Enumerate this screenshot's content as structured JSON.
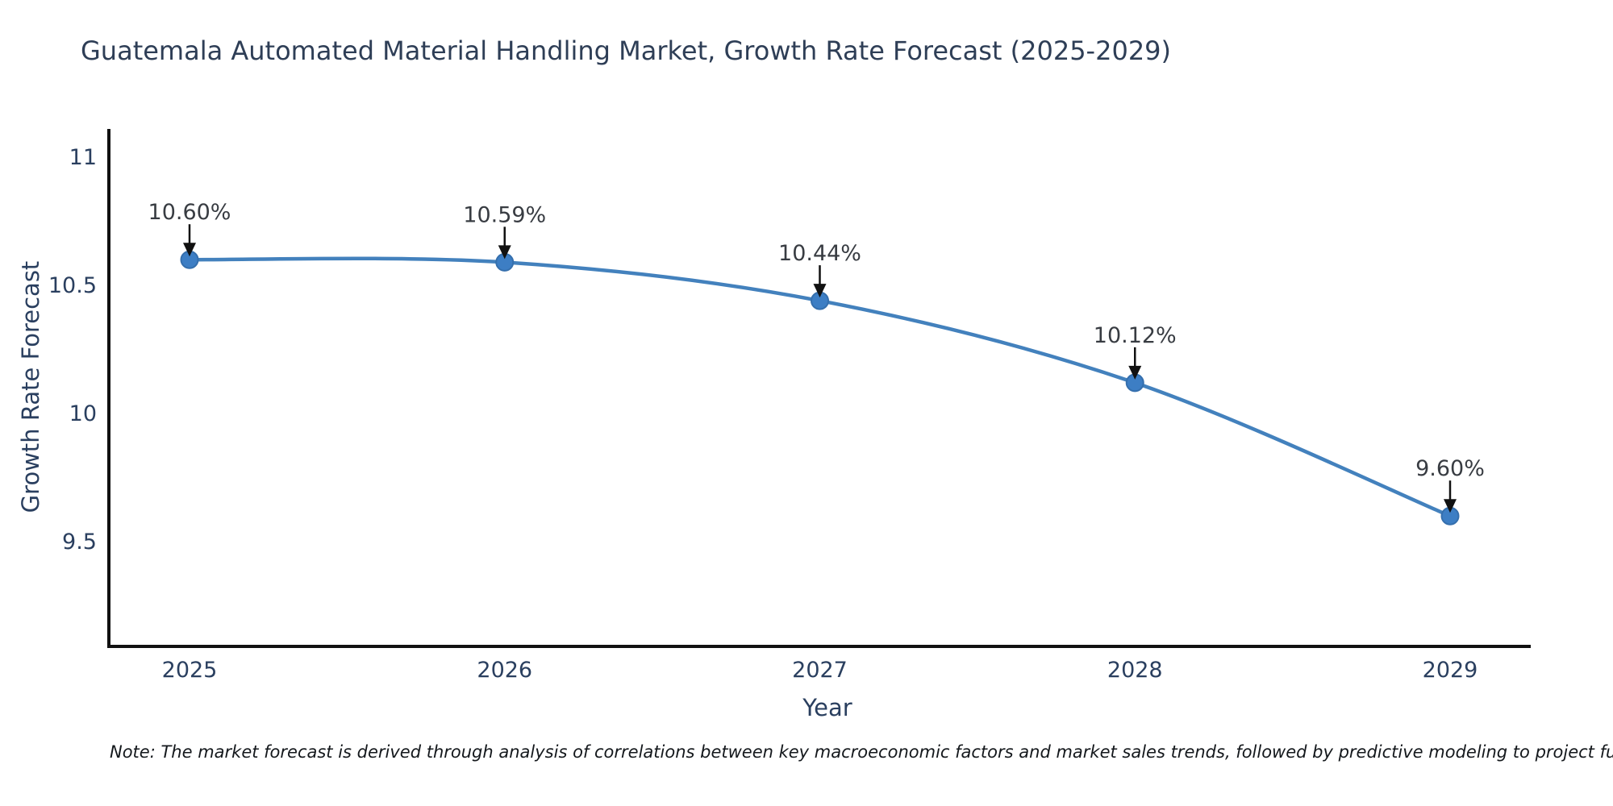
{
  "page": {
    "background_color": "#ffffff"
  },
  "chart_data": {
    "type": "line",
    "title": "Guatemala Automated Material Handling Market, Growth Rate Forecast (2025-2029)",
    "xlabel": "Year",
    "ylabel": "Growth Rate Forecast",
    "x": [
      2025,
      2026,
      2027,
      2028,
      2029
    ],
    "series": [
      {
        "name": "Growth Rate Forecast",
        "values": [
          10.6,
          10.59,
          10.44,
          10.12,
          9.6
        ]
      }
    ],
    "point_labels": [
      "10.60%",
      "10.59%",
      "10.44%",
      "10.12%",
      "9.60%"
    ],
    "xticks": [
      2025,
      2026,
      2027,
      2028,
      2029
    ],
    "yticks": [
      9.5,
      10,
      10.5,
      11
    ],
    "ylim": [
      9.1,
      11.1
    ],
    "xlim": [
      2024.74,
      2029.27
    ],
    "grid": false,
    "legend_position": "none",
    "line_color": "#4381bd",
    "marker_color": "#3d7ec4",
    "marker_edge_color": "#356fad",
    "annotation_color": "#111111",
    "axis_color": "#111111",
    "note": "Note: The market forecast is derived through analysis of correlations between key macroeconomic factors and market sales trends, followed by predictive modeling to project future sal"
  }
}
